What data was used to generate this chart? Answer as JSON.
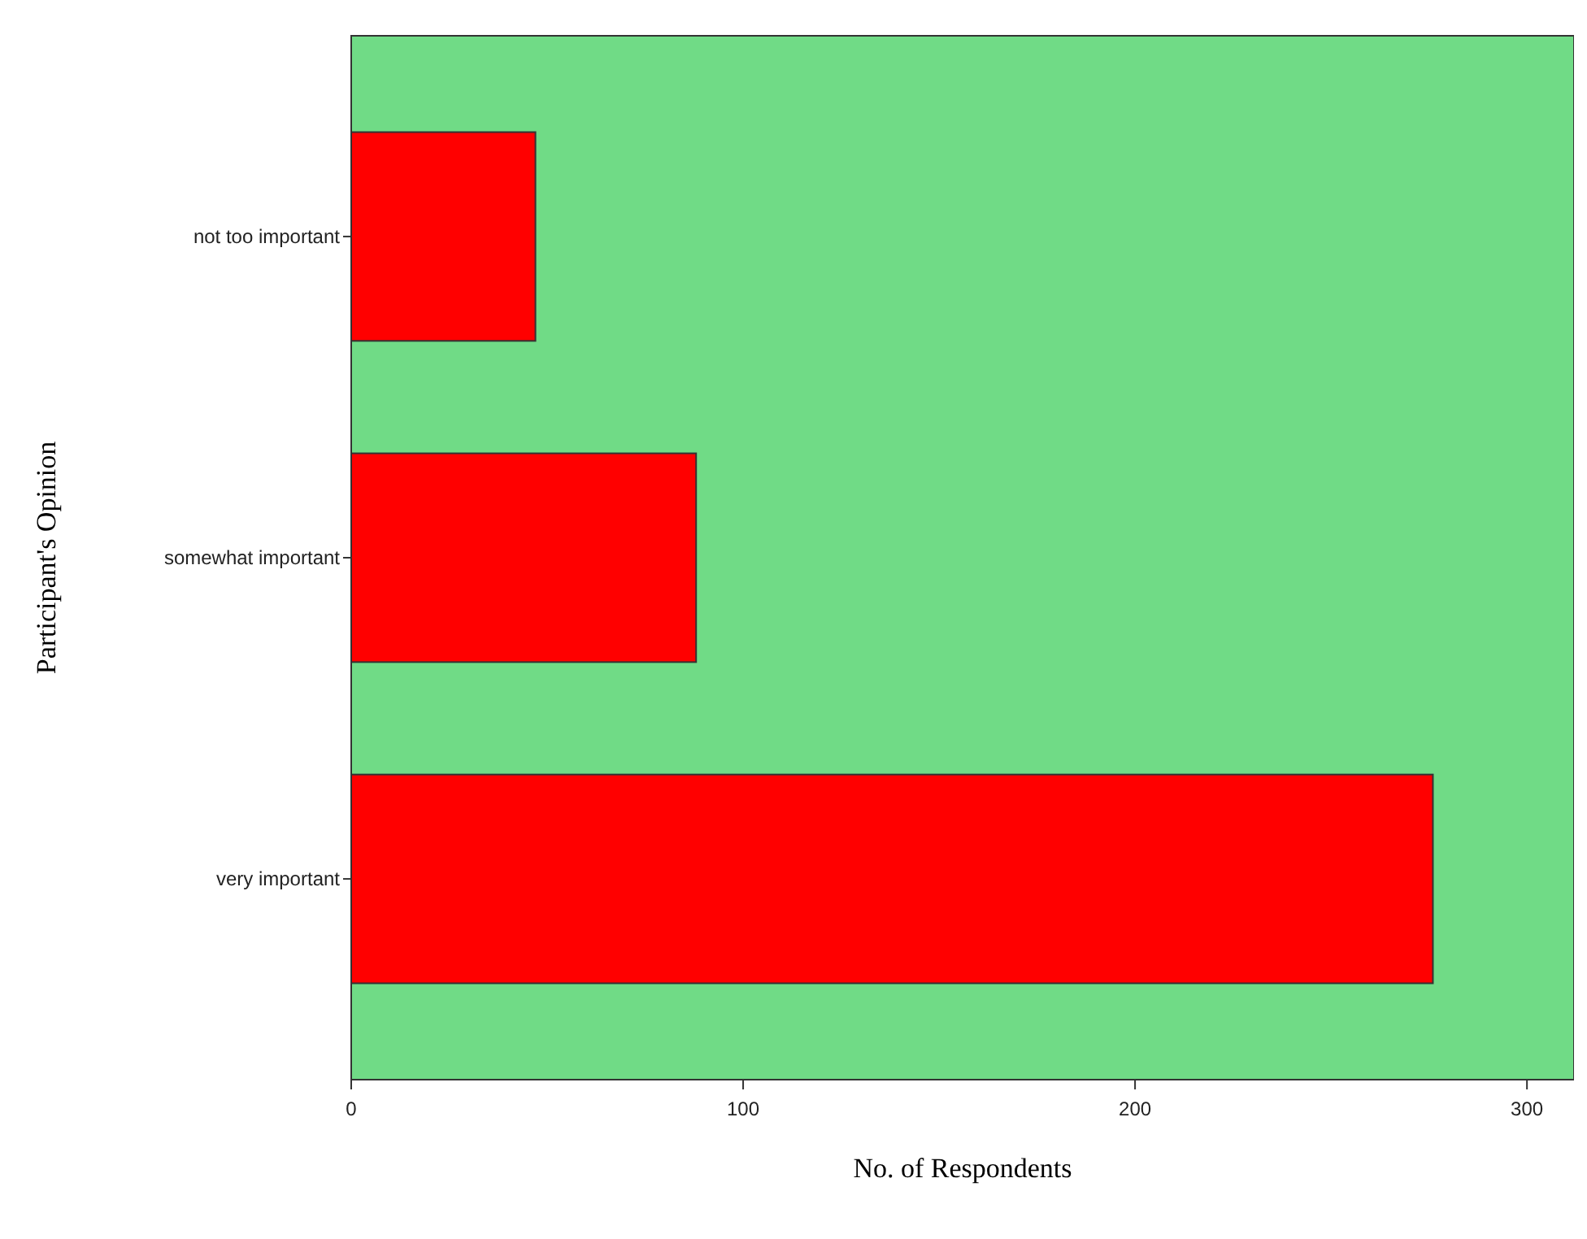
{
  "chart_data": {
    "type": "bar",
    "orientation": "horizontal",
    "xlabel": "No. of Respondents",
    "ylabel": "Participant's Opinion",
    "categories": [
      "not too important",
      "somewhat important",
      "very important"
    ],
    "values": [
      47,
      88,
      276
    ],
    "color": "#ff0000",
    "xlim": [
      0,
      312
    ],
    "xticks": [
      0,
      100,
      200,
      300
    ],
    "grid": false
  }
}
